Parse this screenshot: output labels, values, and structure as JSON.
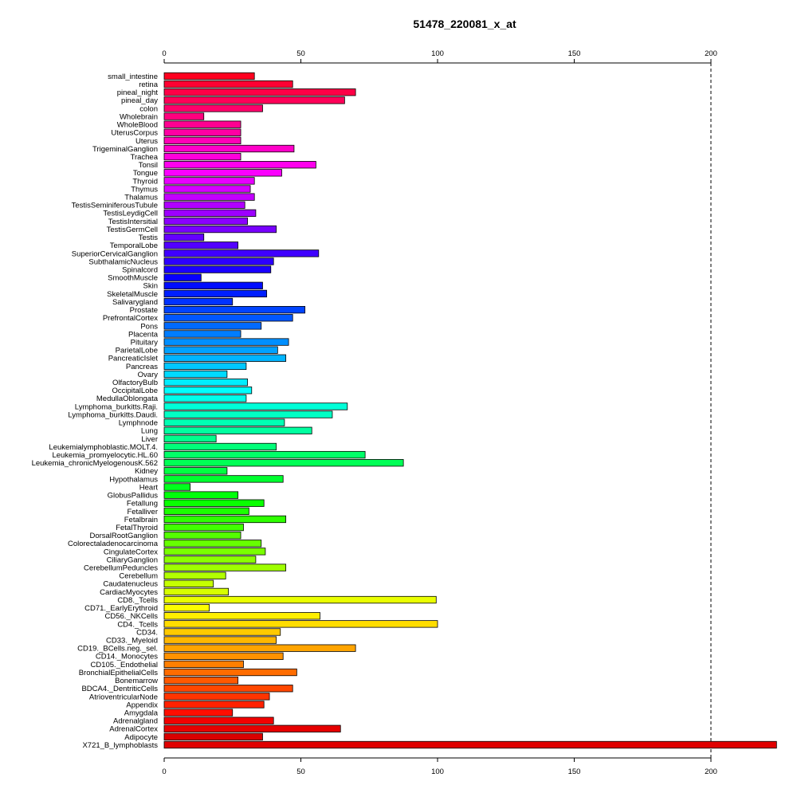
{
  "chart_data": {
    "type": "bar",
    "orientation": "horizontal",
    "title": "51478_220081_x_at",
    "xlabel": "",
    "ylabel": "",
    "xlim": [
      0,
      225
    ],
    "x_ticks": [
      0,
      50,
      100,
      150,
      200
    ],
    "x_tick_labels": [
      "0",
      "50",
      "100",
      "150",
      "200"
    ],
    "reference_line": 200,
    "grid": false,
    "categories": [
      "small_intestine",
      "retina",
      "pineal_night",
      "pineal_day",
      "colon",
      "Wholebrain",
      "WholeBlood",
      "UterusCorpus",
      "Uterus",
      "TrigeminalGanglion",
      "Trachea",
      "Tonsil",
      "Tongue",
      "Thyroid",
      "Thymus",
      "Thalamus",
      "TestisSeminiferousTubule",
      "TestisLeydigCell",
      "TestisIntersitial",
      "TestisGermCell",
      "Testis",
      "TemporalLobe",
      "SuperiorCervicalGanglion",
      "SubthalamicNucleus",
      "Spinalcord",
      "SmoothMuscle",
      "Skin",
      "SkeletalMuscle",
      "Salivarygland",
      "Prostate",
      "PrefrontalCortex",
      "Pons",
      "Placenta",
      "Pituitary",
      "ParietalLobe",
      "PancreaticIslet",
      "Pancreas",
      "Ovary",
      "OlfactoryBulb",
      "OccipitalLobe",
      "MedullaOblongata",
      "Lymphoma_burkitts.Raji.",
      "Lymphoma_burkitts.Daudi.",
      "Lymphnode",
      "Lung",
      "Liver",
      "Leukemialymphoblastic.MOLT.4.",
      "Leukemia_promyelocytic.HL.60",
      "Leukemia_chronicMyelogenousK.562",
      "Kidney",
      "Hypothalamus",
      "Heart",
      "GlobusPallidus",
      "Fetallung",
      "Fetalliver",
      "Fetalbrain",
      "FetalThyroid",
      "DorsalRootGanglion",
      "Colorectaladenocarcinoma",
      "CingulateCortex",
      "CiliaryGanglion",
      "CerebellumPeduncles",
      "Cerebellum",
      "Caudatenucleus",
      "CardiacMyocytes",
      "CD8._Tcells",
      "CD71._EarlyErythroid",
      "CD56._NKCells",
      "CD4._Tcells",
      "CD34.",
      "CD33._Myeloid",
      "CD19._BCells.neg._sel.",
      "CD14._Monocytes",
      "CD105._Endothelial",
      "BronchialEpithelialCells",
      "Bonemarrow",
      "BDCA4._DentriticCells",
      "AtrioventricularNode",
      "Appendix",
      "Amygdala",
      "Adrenalgland",
      "AdrenalCortex",
      "Adipocyte",
      "X721_B_lymphoblasts"
    ],
    "values": [
      33,
      47,
      70,
      66,
      36,
      14.5,
      28,
      28,
      28,
      47.5,
      28,
      55.5,
      43,
      33,
      31.5,
      33,
      29.5,
      33.5,
      30.5,
      41,
      14.5,
      27,
      56.5,
      40,
      39,
      13.5,
      36,
      37.5,
      25,
      51.5,
      47,
      35.5,
      28,
      45.5,
      41.5,
      44.5,
      30,
      23,
      30.5,
      32,
      30,
      67,
      61.5,
      44,
      54,
      19,
      41,
      73.5,
      87.5,
      23,
      43.5,
      9.5,
      27,
      36.5,
      31,
      44.5,
      29,
      28,
      35.5,
      37,
      33.5,
      44.5,
      22.5,
      18,
      23.5,
      99.5,
      16.5,
      57,
      100,
      42.5,
      41,
      70,
      43.5,
      29,
      48.5,
      27,
      47,
      38.5,
      36.5,
      25,
      40,
      64.5,
      36,
      224
    ],
    "bar_colors": [
      "#ff0020",
      "#ff0033",
      "#ff0046",
      "#ff0058",
      "#ff006b",
      "#ff007e",
      "#ff0091",
      "#ff00a3",
      "#ff00b6",
      "#ff00c9",
      "#ff00dc",
      "#ff00ee",
      "#fb00ff",
      "#e800ff",
      "#d500ff",
      "#c300ff",
      "#b000ff",
      "#9d00ff",
      "#8a00ff",
      "#7800ff",
      "#6500ff",
      "#5200ff",
      "#3f00ff",
      "#2d00ff",
      "#1a00ff",
      "#0700ff",
      "#000cff",
      "#001fff",
      "#0032ff",
      "#0044ff",
      "#0057ff",
      "#006aff",
      "#007dff",
      "#008fff",
      "#00a2ff",
      "#00b5ff",
      "#00c8ff",
      "#00daff",
      "#00edff",
      "#00fffe",
      "#00ffeb",
      "#00ffd8",
      "#00ffc5",
      "#00ffb3",
      "#00ffa0",
      "#00ff8d",
      "#00ff7a",
      "#00ff68",
      "#00ff55",
      "#00ff42",
      "#00ff2f",
      "#00ff1d",
      "#00ff0a",
      "#09ff00",
      "#1cff00",
      "#2fff00",
      "#41ff00",
      "#54ff00",
      "#67ff00",
      "#7aff00",
      "#8cff00",
      "#9fff00",
      "#b2ff00",
      "#c5ff00",
      "#d7ff00",
      "#eaff00",
      "#fdff00",
      "#ffef00",
      "#ffdd00",
      "#ffca00",
      "#ffb700",
      "#ffa400",
      "#ff9200",
      "#ff7f00",
      "#ff6c00",
      "#ff5900",
      "#ff4700",
      "#ff3400",
      "#ff2100",
      "#ff0e00",
      "#f20000",
      "#e60000",
      "#d90000",
      "#e00000"
    ]
  }
}
